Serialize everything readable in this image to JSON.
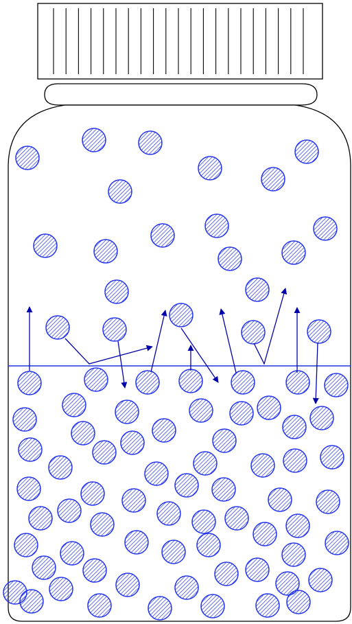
{
  "diagram": {
    "subject": "evaporation-in-closed-jar",
    "icon": "jar-with-molecules",
    "colors": {
      "molecule": "#2233ee",
      "arrow": "#0000aa",
      "surface": "#2233dd",
      "outline": "#000000",
      "background": "#ffffff"
    }
  }
}
